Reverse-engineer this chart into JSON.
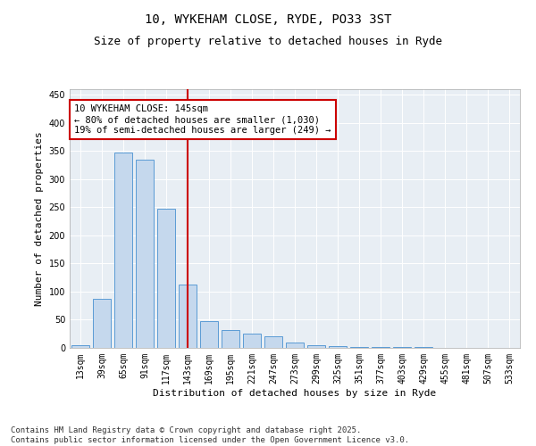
{
  "title1": "10, WYKEHAM CLOSE, RYDE, PO33 3ST",
  "title2": "Size of property relative to detached houses in Ryde",
  "xlabel": "Distribution of detached houses by size in Ryde",
  "ylabel": "Number of detached properties",
  "categories": [
    "13sqm",
    "39sqm",
    "65sqm",
    "91sqm",
    "117sqm",
    "143sqm",
    "169sqm",
    "195sqm",
    "221sqm",
    "247sqm",
    "273sqm",
    "299sqm",
    "325sqm",
    "351sqm",
    "377sqm",
    "403sqm",
    "429sqm",
    "455sqm",
    "481sqm",
    "507sqm",
    "533sqm"
  ],
  "values": [
    5,
    88,
    348,
    335,
    248,
    112,
    48,
    32,
    25,
    20,
    10,
    5,
    3,
    2,
    1,
    1,
    1,
    0,
    0,
    0,
    0
  ],
  "bar_color": "#c5d8ed",
  "bar_edge_color": "#5b9bd5",
  "vline_index": 5,
  "vline_color": "#cc0000",
  "annotation_text": "10 WYKEHAM CLOSE: 145sqm\n← 80% of detached houses are smaller (1,030)\n19% of semi-detached houses are larger (249) →",
  "annotation_box_color": "#ffffff",
  "annotation_box_edge": "#cc0000",
  "ylim": [
    0,
    460
  ],
  "yticks": [
    0,
    50,
    100,
    150,
    200,
    250,
    300,
    350,
    400,
    450
  ],
  "bg_color": "#e8eef4",
  "footer_text": "Contains HM Land Registry data © Crown copyright and database right 2025.\nContains public sector information licensed under the Open Government Licence v3.0.",
  "title_fontsize": 10,
  "subtitle_fontsize": 9,
  "axis_label_fontsize": 8,
  "tick_fontsize": 7,
  "annotation_fontsize": 7.5,
  "footer_fontsize": 6.5
}
